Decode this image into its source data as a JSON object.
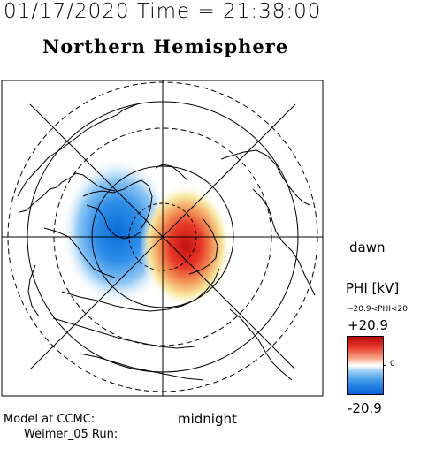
{
  "header": {
    "datetime": "01/17/2020 Time = 21:38:00"
  },
  "title": "Northern Hemisphere",
  "labels": {
    "dawn": "dawn",
    "midnight": "midnight"
  },
  "colorbar": {
    "label": "PHI [kV]",
    "range_text": "−20.9<PHI<20",
    "max_label": "+20.9",
    "zero_label": "0",
    "min_label": "-20.9",
    "colors": {
      "positive": "#e8362b",
      "negative": "#2f8ee8",
      "neutral": "#ffffff"
    }
  },
  "footer": {
    "model_line": "Model at CCMC:",
    "run_line": "Weimer_05 Run:"
  }
}
